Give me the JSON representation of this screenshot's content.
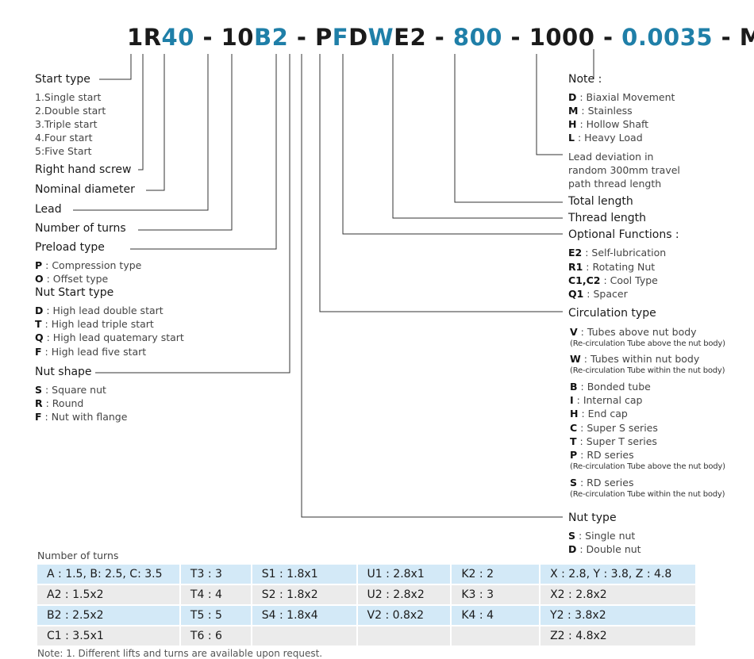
{
  "code": {
    "segments": [
      {
        "text": "1",
        "color": "#1a1a1a"
      },
      {
        "text": "R",
        "color": "#1a1a1a"
      },
      {
        "text": "40",
        "color": "#1f7fa8"
      },
      {
        "text": " - ",
        "color": "#1a1a1a"
      },
      {
        "text": "10",
        "color": "#1a1a1a"
      },
      {
        "text": "B2",
        "color": "#1f7fa8"
      },
      {
        "text": " - ",
        "color": "#1a1a1a"
      },
      {
        "text": "P",
        "color": "#1a1a1a"
      },
      {
        "text": "F",
        "color": "#1f7fa8"
      },
      {
        "text": "D",
        "color": "#1a1a1a"
      },
      {
        "text": "W",
        "color": "#1f7fa8"
      },
      {
        "text": "E2",
        "color": "#1a1a1a"
      },
      {
        "text": " - ",
        "color": "#1a1a1a"
      },
      {
        "text": "800",
        "color": "#1f7fa8"
      },
      {
        "text": " - ",
        "color": "#1a1a1a"
      },
      {
        "text": "1000",
        "color": "#1a1a1a"
      },
      {
        "text": " - ",
        "color": "#1a1a1a"
      },
      {
        "text": "0.0035",
        "color": "#1f7fa8"
      },
      {
        "text": " - ",
        "color": "#1a1a1a"
      },
      {
        "text": "M",
        "color": "#1a1a1a"
      }
    ]
  },
  "left": {
    "start_type": {
      "label": "Start type",
      "items": [
        "1.Single start",
        "2.Double start",
        "3.Triple start",
        "4.Four start",
        "5:Five Start"
      ]
    },
    "right_hand_screw": "Right hand screw",
    "nominal_diameter": "Nominal diameter",
    "lead": "Lead",
    "number_of_turns": "Number of turns",
    "preload_type": {
      "label": "Preload type",
      "items": [
        {
          "key": "P",
          "desc": " : Compression type"
        },
        {
          "key": "O",
          "desc": " : Offset type"
        }
      ]
    },
    "nut_start_type": {
      "label": "Nut Start type",
      "items": [
        {
          "key": "D",
          "desc": " : High lead double start"
        },
        {
          "key": "T",
          "desc": " : High lead triple start"
        },
        {
          "key": "Q",
          "desc": " : High lead quatemary start"
        },
        {
          "key": "F",
          "desc": " : High lead five start"
        }
      ]
    },
    "nut_shape": {
      "label": "Nut shape",
      "items": [
        {
          "key": "S",
          "desc": " : Square nut"
        },
        {
          "key": "R",
          "desc": " : Round"
        },
        {
          "key": "F",
          "desc": " : Nut with flange"
        }
      ]
    }
  },
  "right": {
    "note": {
      "label": "Note :",
      "items": [
        {
          "key": "D",
          "desc": " : Biaxial Movement"
        },
        {
          "key": "M",
          "desc": " : Stainless"
        },
        {
          "key": "H",
          "desc": " : Hollow Shaft"
        },
        {
          "key": "L",
          "desc": " : Heavy Load"
        }
      ]
    },
    "lead_deviation": [
      "Lead deviation in",
      "random 300mm travel",
      "path thread length"
    ],
    "total_length": "Total length",
    "thread_length": "Thread length",
    "optional_functions": {
      "label": "Optional Functions :",
      "items": [
        {
          "key": "E2",
          "desc": " : Self-lubrication"
        },
        {
          "key": "R1",
          "desc": " : Rotating Nut"
        },
        {
          "key": "C1,C2",
          "desc": " : Cool Type"
        },
        {
          "key": "Q1",
          "desc": " : Spacer"
        }
      ]
    },
    "circulation_type": {
      "label": "Circulation type",
      "items": [
        {
          "key": "V",
          "desc": " : Tubes above nut body",
          "note": "(Re-circulation Tube above the nut body)"
        },
        {
          "key": "W",
          "desc": " : Tubes within nut body",
          "note": "(Re-circulation Tube within the nut body)"
        },
        {
          "key": "B",
          "desc": " : Bonded tube",
          "note": ""
        },
        {
          "key": "I",
          "desc": " : Internal cap",
          "note": ""
        },
        {
          "key": "H",
          "desc": " : End cap",
          "note": ""
        },
        {
          "key": "C",
          "desc": " : Super S series",
          "note": ""
        },
        {
          "key": "T",
          "desc": " : Super T series",
          "note": ""
        },
        {
          "key": "P",
          "desc": " : RD series",
          "note": "(Re-circulation Tube above the nut body)"
        },
        {
          "key": "S",
          "desc": " : RD series",
          "note": "(Re-circulation Tube within the nut body)"
        }
      ]
    },
    "nut_type": {
      "label": "Nut type",
      "items": [
        {
          "key": "S",
          "desc": " : Single nut"
        },
        {
          "key": "D",
          "desc": " : Double nut"
        }
      ]
    }
  },
  "turns_table": {
    "title": "Number of turns",
    "rows": [
      [
        "A : 1.5, B: 2.5, C: 3.5",
        "T3 : 3",
        "S1 : 1.8x1",
        "U1 : 2.8x1",
        "K2 : 2",
        "X : 2.8, Y : 3.8, Z : 4.8"
      ],
      [
        "A2 : 1.5x2",
        "T4 : 4",
        "S2 : 1.8x2",
        "U2 : 2.8x2",
        "K3 : 3",
        "X2 : 2.8x2"
      ],
      [
        "B2 : 2.5x2",
        "T5 : 5",
        "S4 : 1.8x4",
        "V2 : 0.8x2",
        "K4 : 4",
        "Y2 : 3.8x2"
      ],
      [
        "C1 : 3.5x1",
        "T6 : 6",
        "",
        "",
        "",
        "Z2 : 4.8x2"
      ]
    ]
  },
  "footer_text": "Note: 1. Different lifts  and turns are available upon request.",
  "colors": {
    "accent": "#1f7fa8",
    "row_blue": "#d3e9f7",
    "row_grey": "#ebebeb",
    "line": "#333333"
  }
}
